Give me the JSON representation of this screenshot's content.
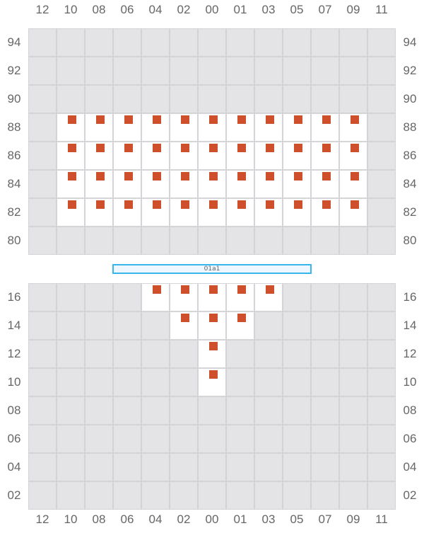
{
  "columns": [
    "12",
    "10",
    "08",
    "06",
    "04",
    "02",
    "00",
    "01",
    "03",
    "05",
    "07",
    "09",
    "11"
  ],
  "top_rows": [
    "94",
    "92",
    "90",
    "88",
    "86",
    "84",
    "82",
    "80"
  ],
  "bottom_rows": [
    "16",
    "14",
    "12",
    "10",
    "08",
    "06",
    "04",
    "02"
  ],
  "divider_label": "01a1",
  "top_occupied": {
    "88": [
      "10",
      "08",
      "06",
      "04",
      "02",
      "00",
      "01",
      "03",
      "05",
      "07",
      "09"
    ],
    "86": [
      "10",
      "08",
      "06",
      "04",
      "02",
      "00",
      "01",
      "03",
      "05",
      "07",
      "09"
    ],
    "84": [
      "10",
      "08",
      "06",
      "04",
      "02",
      "00",
      "01",
      "03",
      "05",
      "07",
      "09"
    ],
    "82": [
      "10",
      "08",
      "06",
      "04",
      "02",
      "00",
      "01",
      "03",
      "05",
      "07",
      "09"
    ]
  },
  "bottom_occupied": {
    "16": [
      "04",
      "02",
      "00",
      "01",
      "03"
    ],
    "14": [
      "02",
      "00",
      "01"
    ],
    "12": [
      "00"
    ],
    "10": [
      "00"
    ]
  },
  "colors": {
    "marker": "#cd4f2b",
    "empty_cell": "#e4e4e7",
    "active_cell": "#ffffff",
    "divider": "#38b6ee"
  }
}
